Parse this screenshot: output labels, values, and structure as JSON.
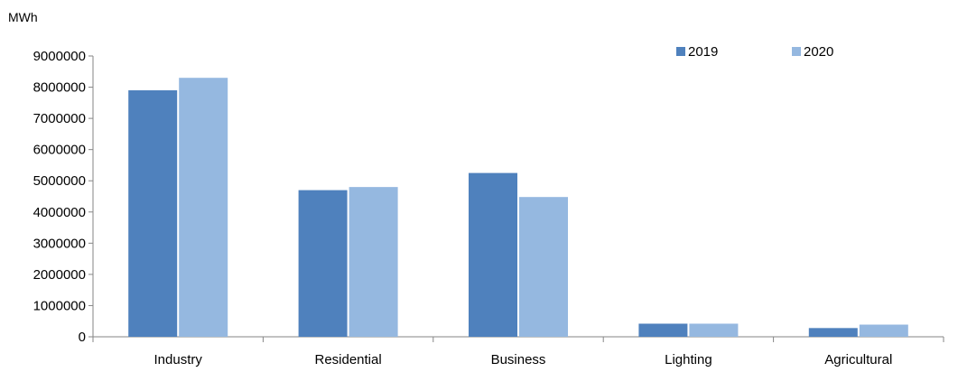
{
  "chart_data": {
    "type": "bar",
    "ylabel": "MWh",
    "categories": [
      "Industry",
      "Residential",
      "Business",
      "Lighting",
      "Agricultural"
    ],
    "series": [
      {
        "name": "2019",
        "color": "#4f81bd",
        "values": [
          7900000,
          4700000,
          5250000,
          420000,
          280000
        ]
      },
      {
        "name": "2020",
        "color": "#95b8e0",
        "values": [
          8300000,
          4800000,
          4480000,
          420000,
          390000
        ]
      }
    ],
    "ylim": [
      0,
      9000000
    ],
    "yticks": [
      "0",
      "1000000",
      "2000000",
      "3000000",
      "4000000",
      "5000000",
      "6000000",
      "7000000",
      "8000000",
      "9000000"
    ],
    "grid": false,
    "legend_position": "top-right"
  }
}
